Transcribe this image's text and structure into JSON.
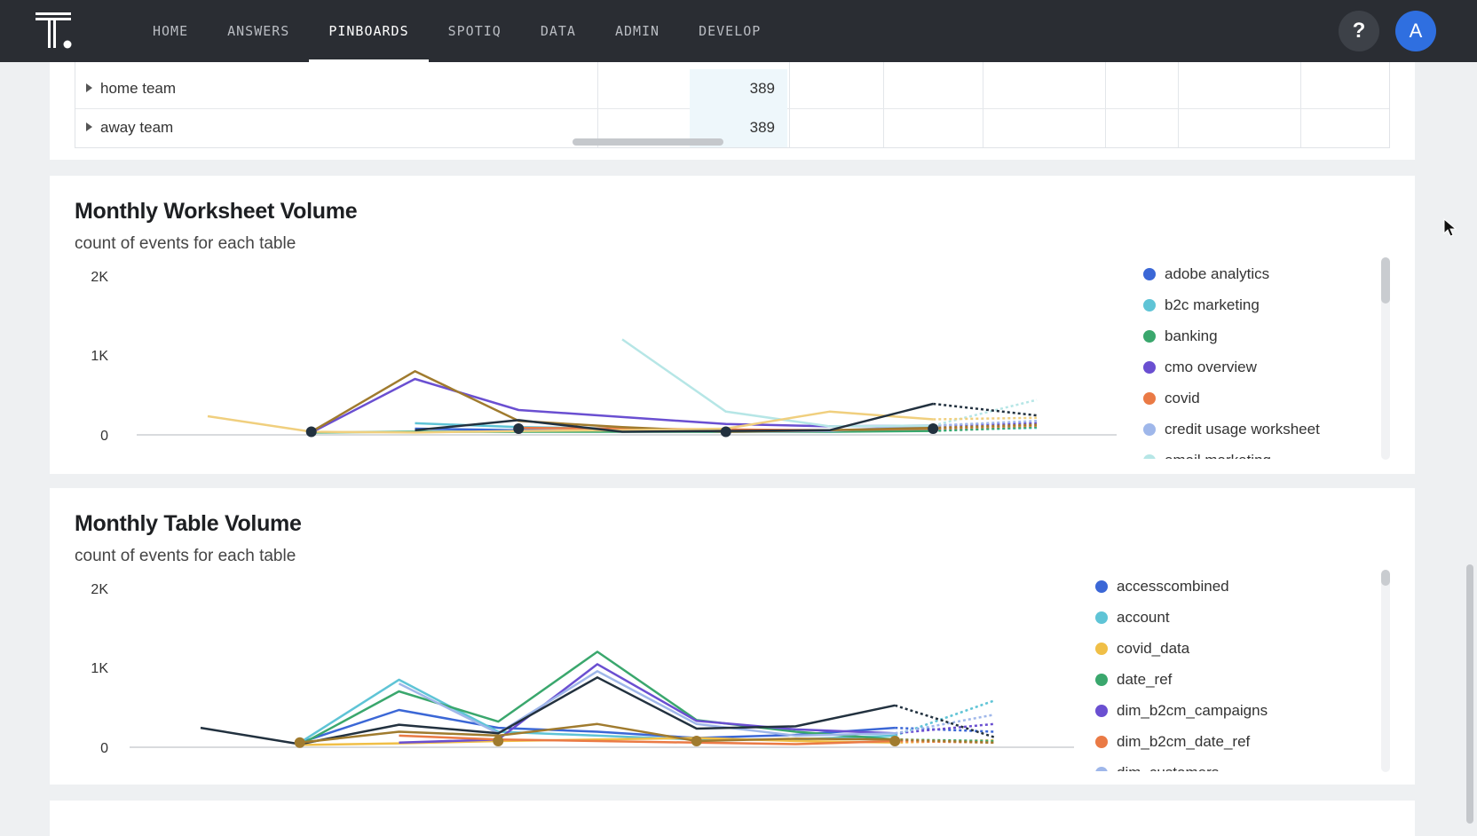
{
  "nav": {
    "items": [
      "HOME",
      "ANSWERS",
      "PINBOARDS",
      "SPOTIQ",
      "DATA",
      "ADMIN",
      "DEVELOP"
    ],
    "active": "PINBOARDS",
    "help": "?",
    "avatar": "A"
  },
  "table": {
    "rows": [
      {
        "label": "home team",
        "value": "389"
      },
      {
        "label": "away team",
        "value": "389"
      }
    ]
  },
  "worksheet_chart": {
    "title": "Monthly Worksheet Volume",
    "subtitle": "count of events for each table",
    "legend": [
      {
        "label": "adobe analytics",
        "color": "#3b67d6"
      },
      {
        "label": "b2c marketing",
        "color": "#5fc4d6"
      },
      {
        "label": "banking",
        "color": "#3aa76d"
      },
      {
        "label": "cmo overview",
        "color": "#6a4fd1"
      },
      {
        "label": "covid",
        "color": "#ea7a45"
      },
      {
        "label": "credit usage worksheet",
        "color": "#9fb7ea"
      },
      {
        "label": "email marketing",
        "color": "#b6e6e6"
      }
    ]
  },
  "table_chart": {
    "title": "Monthly Table Volume",
    "subtitle": "count of events for each table",
    "legend": [
      {
        "label": "accesscombined",
        "color": "#3b67d6"
      },
      {
        "label": "account",
        "color": "#5fc4d6"
      },
      {
        "label": "covid_data",
        "color": "#f0bf47"
      },
      {
        "label": "date_ref",
        "color": "#3aa76d"
      },
      {
        "label": "dim_b2cm_campaigns",
        "color": "#6a4fd1"
      },
      {
        "label": "dim_b2cm_date_ref",
        "color": "#ea7a45"
      },
      {
        "label": "dim_customers",
        "color": "#9fb7ea"
      }
    ]
  },
  "chart_data": [
    {
      "type": "line",
      "title": "Monthly Worksheet Volume",
      "subtitle": "count of events for each table",
      "xlabel": "",
      "ylabel": "",
      "y_ticks": [
        "0",
        "1K",
        "2K"
      ],
      "ylim": [
        0,
        2000
      ],
      "x": [
        0,
        1,
        2,
        3,
        4,
        5,
        6,
        7,
        8
      ],
      "legend_position": "right",
      "series": [
        {
          "name": "adobe analytics",
          "color": "#3b67d6",
          "values": [
            null,
            null,
            80,
            60,
            50,
            40,
            50,
            80,
            null
          ]
        },
        {
          "name": "b2c marketing",
          "color": "#5fc4d6",
          "values": [
            null,
            null,
            150,
            100,
            80,
            60,
            40,
            60,
            90
          ]
        },
        {
          "name": "banking",
          "color": "#3aa76d",
          "values": [
            null,
            30,
            40,
            40,
            40,
            40,
            40,
            50,
            100
          ]
        },
        {
          "name": "cmo overview",
          "color": "#6a4fd1",
          "values": [
            null,
            30,
            720,
            320,
            230,
            140,
            110,
            120,
            150
          ]
        },
        {
          "name": "covid",
          "color": "#ea7a45",
          "values": [
            null,
            null,
            null,
            90,
            80,
            70,
            60,
            80,
            120
          ]
        },
        {
          "name": "credit usage worksheet",
          "color": "#9fb7ea",
          "values": [
            null,
            null,
            null,
            null,
            null,
            40,
            50,
            120,
            180
          ]
        },
        {
          "name": "email marketing",
          "color": "#b6e6e6",
          "values": [
            null,
            null,
            null,
            null,
            1230,
            300,
            110,
            120,
            450
          ]
        },
        {
          "name": "",
          "color": "#a07b2e",
          "values": [
            null,
            40,
            820,
            180,
            100,
            40,
            60,
            90,
            130
          ]
        },
        {
          "name": "",
          "color": "#f0cf7e",
          "values": [
            240,
            40,
            30,
            50,
            60,
            80,
            300,
            200,
            220
          ]
        },
        {
          "name": "",
          "color": "#22313f",
          "values": [
            null,
            null,
            60,
            190,
            40,
            50,
            60,
            400,
            250
          ]
        }
      ]
    },
    {
      "type": "line",
      "title": "Monthly Table Volume",
      "subtitle": "count of events for each table",
      "xlabel": "",
      "ylabel": "",
      "y_ticks": [
        "0",
        "1K",
        "2K"
      ],
      "ylim": [
        0,
        2000
      ],
      "x": [
        0,
        1,
        2,
        3,
        4,
        5,
        6,
        7,
        8
      ],
      "legend_position": "right",
      "series": [
        {
          "name": "accesscombined",
          "color": "#3b67d6",
          "values": [
            null,
            60,
            480,
            250,
            200,
            120,
            160,
            250,
            200
          ]
        },
        {
          "name": "account",
          "color": "#5fc4d6",
          "values": [
            null,
            60,
            870,
            200,
            150,
            100,
            100,
            150,
            600
          ]
        },
        {
          "name": "covid_data",
          "color": "#f0bf47",
          "values": [
            null,
            30,
            50,
            80,
            100,
            120,
            80,
            60,
            90
          ]
        },
        {
          "name": "date_ref",
          "color": "#3aa76d",
          "values": [
            null,
            30,
            720,
            330,
            1230,
            350,
            200,
            100,
            80
          ]
        },
        {
          "name": "dim_b2cm_campaigns",
          "color": "#6a4fd1",
          "values": [
            null,
            null,
            60,
            100,
            1070,
            340,
            230,
            180,
            300
          ]
        },
        {
          "name": "dim_b2cm_date_ref",
          "color": "#ea7a45",
          "values": [
            null,
            null,
            150,
            100,
            80,
            60,
            40,
            80,
            60
          ]
        },
        {
          "name": "dim_customers",
          "color": "#9fb7ea",
          "values": [
            null,
            null,
            820,
            180,
            980,
            300,
            150,
            180,
            420
          ]
        },
        {
          "name": "",
          "color": "#22313f",
          "values": [
            250,
            40,
            290,
            180,
            900,
            240,
            270,
            540,
            130
          ]
        },
        {
          "name": "",
          "color": "#a07b2e",
          "values": [
            null,
            60,
            200,
            150,
            300,
            80,
            110,
            100,
            60
          ]
        }
      ]
    }
  ]
}
